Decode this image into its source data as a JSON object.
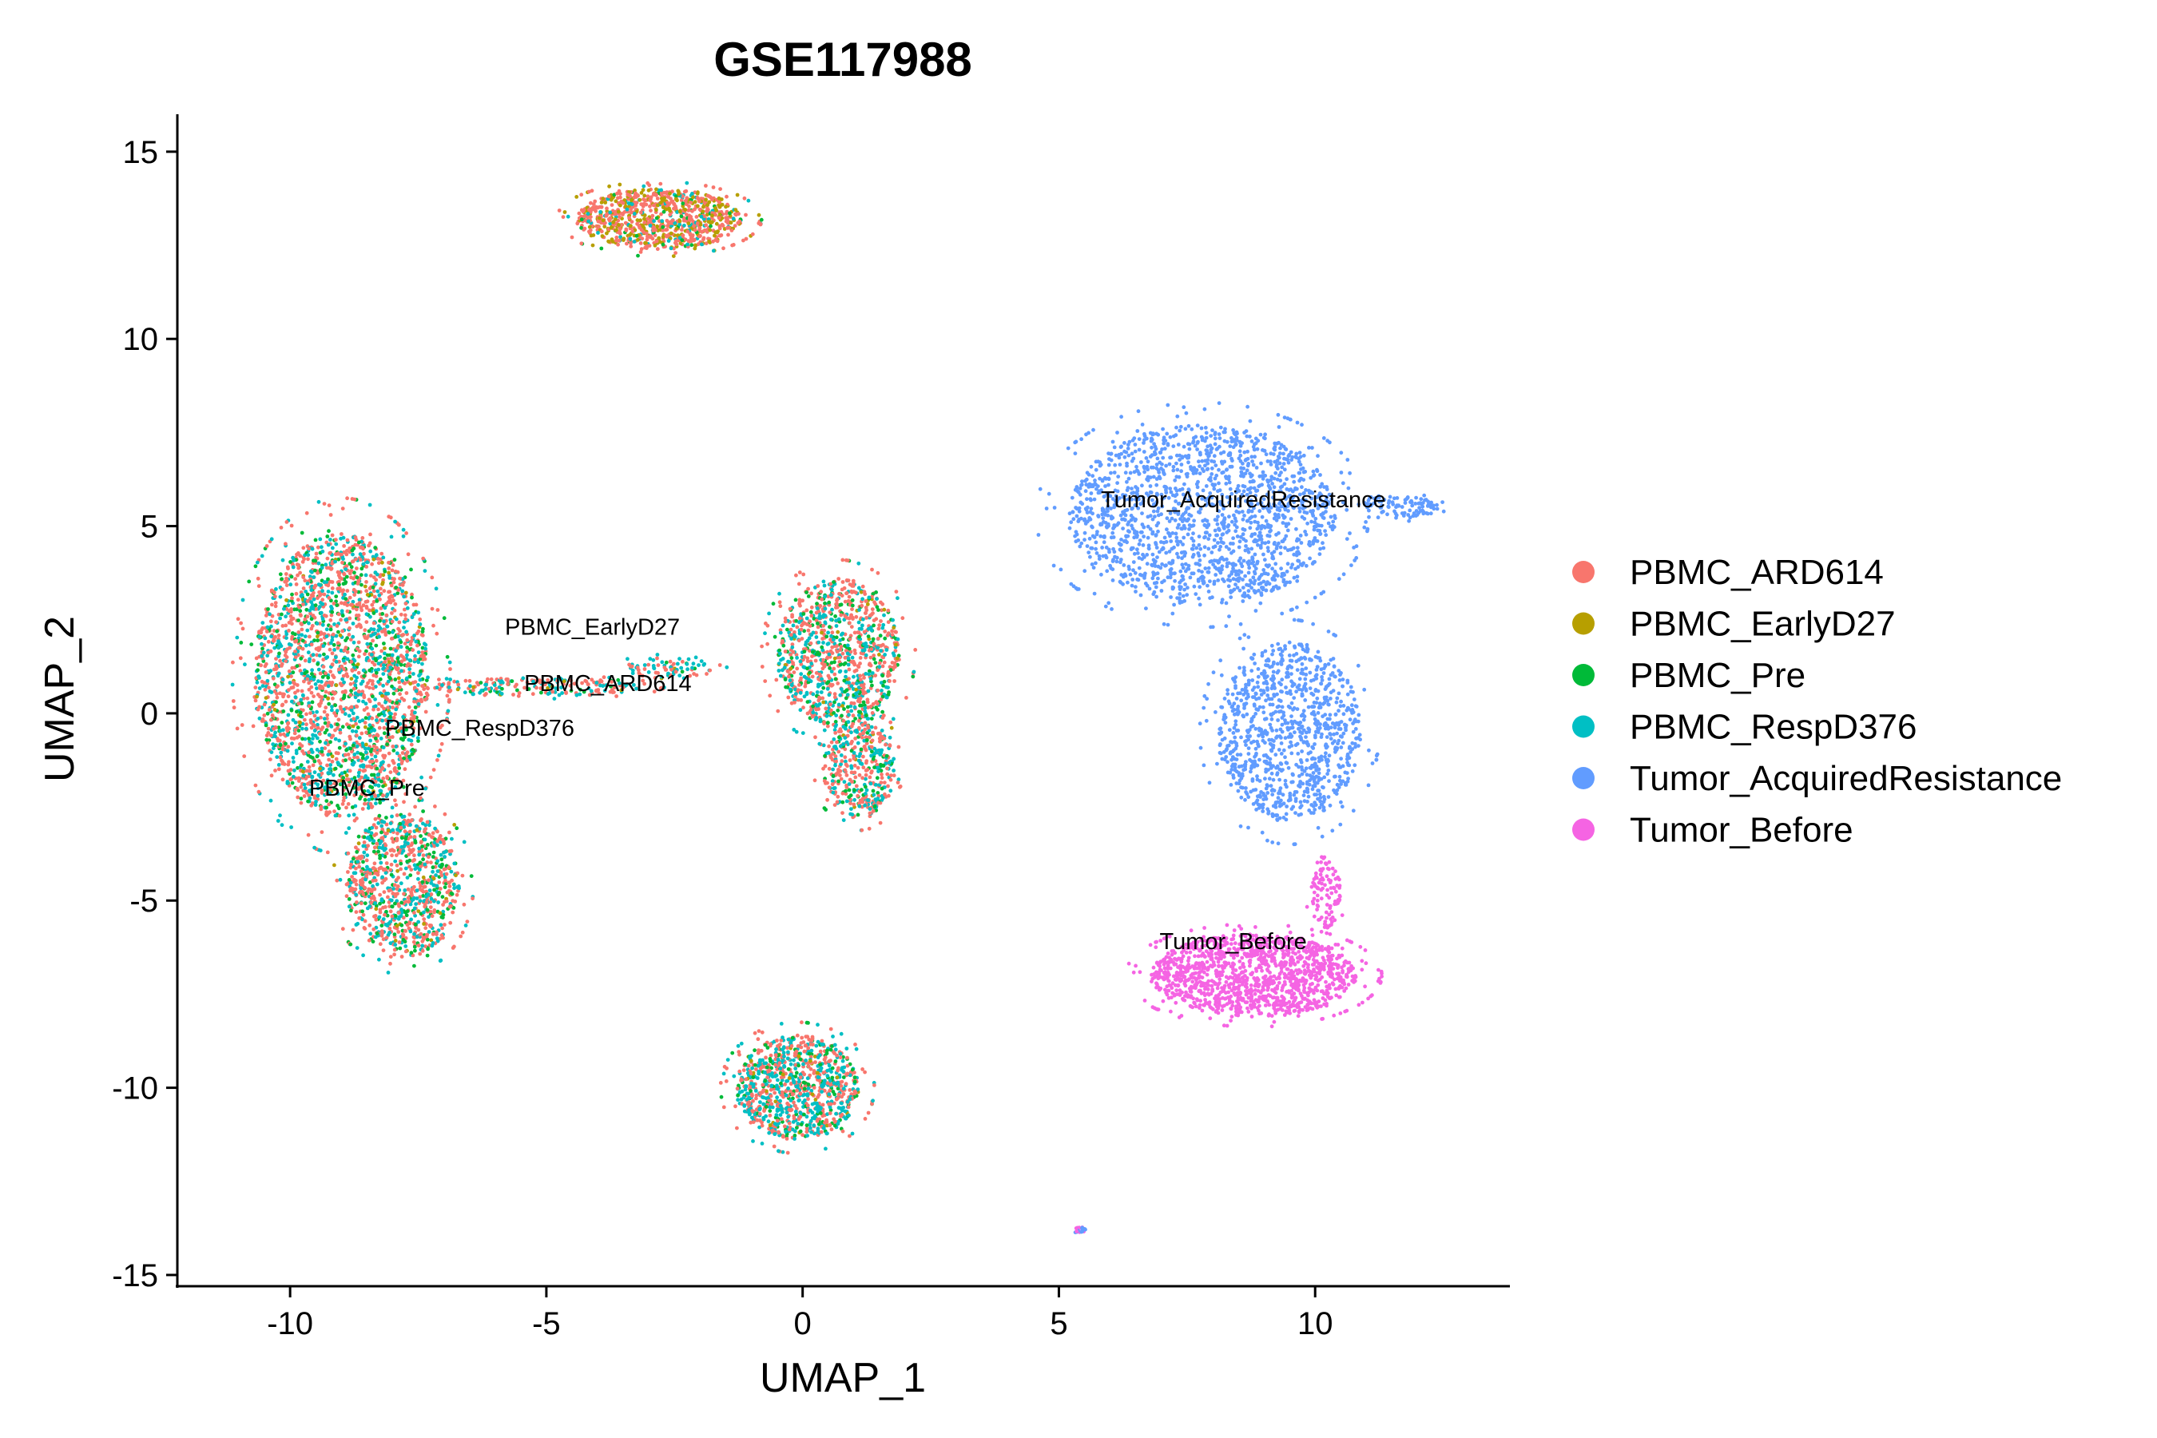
{
  "chart_data": {
    "type": "scatter",
    "title": "GSE117988",
    "xlabel": "UMAP_1",
    "ylabel": "UMAP_2",
    "xlim": [
      -12.2,
      13.8
    ],
    "ylim": [
      -15.3,
      16
    ],
    "xticks": [
      -10,
      -5,
      0,
      5,
      10
    ],
    "yticks": [
      -15,
      -10,
      -5,
      0,
      5,
      10,
      15
    ],
    "xtick_labels": [
      "-10",
      "-5",
      "0",
      "5",
      "10"
    ],
    "ytick_labels": [
      "-15",
      "-10",
      "-5",
      "0",
      "5",
      "10",
      "15"
    ],
    "grid": false,
    "legend_position": "right",
    "series": [
      {
        "name": "PBMC_ARD614",
        "color": "#F8766D"
      },
      {
        "name": "PBMC_EarlyD27",
        "color": "#B79F00"
      },
      {
        "name": "PBMC_Pre",
        "color": "#00BA38"
      },
      {
        "name": "PBMC_RespD376",
        "color": "#00BFC4"
      },
      {
        "name": "Tumor_AcquiredResistance",
        "color": "#619CFF"
      },
      {
        "name": "Tumor_Before",
        "color": "#F564E3"
      }
    ],
    "clusters": [
      {
        "x": -9.0,
        "y": 1.0,
        "rx": 1.7,
        "ry": 3.8,
        "weights": [
          0.5,
          0.03,
          0.17,
          0.3,
          0,
          0
        ],
        "n": 2400
      },
      {
        "x": -7.8,
        "y": -4.6,
        "rx": 1.1,
        "ry": 1.9,
        "weights": [
          0.5,
          0.03,
          0.17,
          0.3,
          0,
          0
        ],
        "n": 900
      },
      {
        "x": -5.2,
        "y": 0.7,
        "rx": 2.0,
        "ry": 0.25,
        "weights": [
          0.5,
          0.05,
          0.1,
          0.35,
          0,
          0
        ],
        "n": 200
      },
      {
        "x": -2.6,
        "y": 1.2,
        "rx": 0.9,
        "ry": 0.3,
        "weights": [
          0.5,
          0.05,
          0.1,
          0.35,
          0,
          0
        ],
        "n": 80
      },
      {
        "x": 0.7,
        "y": 1.6,
        "rx": 1.2,
        "ry": 2.0,
        "weights": [
          0.5,
          0.03,
          0.15,
          0.32,
          0,
          0
        ],
        "n": 1000
      },
      {
        "x": 1.1,
        "y": -1.5,
        "rx": 0.7,
        "ry": 1.3,
        "weights": [
          0.5,
          0.03,
          0.15,
          0.32,
          0,
          0
        ],
        "n": 400
      },
      {
        "x": -2.8,
        "y": 13.2,
        "rx": 1.6,
        "ry": 0.8,
        "weights": [
          0.55,
          0.3,
          0.05,
          0.1,
          0,
          0
        ],
        "n": 900
      },
      {
        "x": -0.1,
        "y": -10.0,
        "rx": 1.2,
        "ry": 1.4,
        "weights": [
          0.45,
          0.03,
          0.12,
          0.4,
          0,
          0
        ],
        "n": 1000
      },
      {
        "x": 7.8,
        "y": 5.3,
        "rx": 2.6,
        "ry": 2.4,
        "weights": [
          0,
          0,
          0,
          0,
          1,
          0
        ],
        "n": 1700
      },
      {
        "x": 9.5,
        "y": -0.5,
        "rx": 1.4,
        "ry": 2.4,
        "weights": [
          0,
          0,
          0,
          0,
          1,
          0
        ],
        "n": 1000
      },
      {
        "x": 11.6,
        "y": 5.5,
        "rx": 0.8,
        "ry": 0.3,
        "weights": [
          0,
          0,
          0,
          0,
          1,
          0
        ],
        "n": 100
      },
      {
        "x": 8.8,
        "y": -7.0,
        "rx": 2.0,
        "ry": 1.1,
        "weights": [
          0,
          0,
          0,
          0,
          0,
          1
        ],
        "n": 1300
      },
      {
        "x": 10.2,
        "y": -4.8,
        "rx": 0.3,
        "ry": 1.0,
        "weights": [
          0,
          0,
          0,
          0,
          0,
          1
        ],
        "n": 100
      },
      {
        "x": 5.4,
        "y": -13.8,
        "rx": 0.12,
        "ry": 0.1,
        "weights": [
          0,
          0,
          0,
          0,
          0.5,
          0.5
        ],
        "n": 20
      }
    ],
    "cluster_labels": [
      {
        "text": "PBMC_EarlyD27",
        "x": -4.1,
        "y": 2.1
      },
      {
        "text": "PBMC_ARD614",
        "x": -3.8,
        "y": 0.6
      },
      {
        "text": "PBMC_RespD376",
        "x": -6.3,
        "y": -0.6
      },
      {
        "text": "PBMC_Pre",
        "x": -8.5,
        "y": -2.2
      },
      {
        "text": "Tumor_AcquiredResistance",
        "x": 8.6,
        "y": 5.5
      },
      {
        "text": "Tumor_Before",
        "x": 8.4,
        "y": -6.3
      }
    ]
  }
}
